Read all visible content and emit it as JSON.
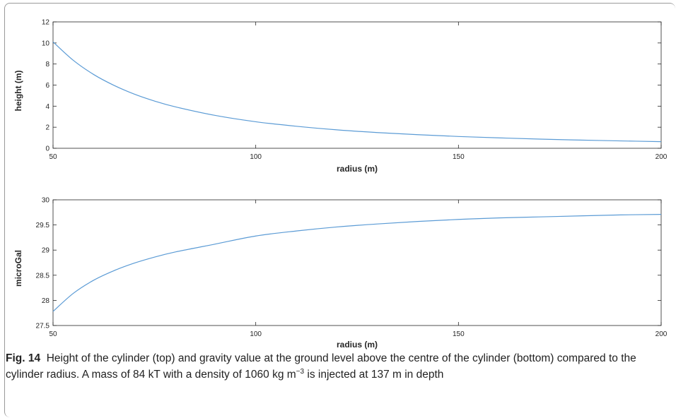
{
  "chart_data": [
    {
      "type": "line",
      "xlabel": "radius (m)",
      "ylabel": "height (m)",
      "xlim": [
        50,
        200
      ],
      "ylim": [
        0,
        12
      ],
      "xticks": [
        "50",
        "100",
        "150",
        "200"
      ],
      "yticks": [
        "0",
        "2",
        "4",
        "6",
        "8",
        "10",
        "12"
      ],
      "grid": false,
      "color": "#5b9bd5",
      "series": [
        {
          "x": [
            50,
            55,
            60,
            65,
            70,
            75,
            80,
            90,
            100,
            110,
            120,
            130,
            140,
            150,
            160,
            170,
            180,
            190,
            200
          ],
          "y": [
            10.1,
            8.35,
            7.01,
            5.98,
            5.15,
            4.49,
            3.95,
            3.12,
            2.52,
            2.09,
            1.75,
            1.49,
            1.29,
            1.12,
            0.99,
            0.87,
            0.78,
            0.7,
            0.63
          ]
        }
      ]
    },
    {
      "type": "line",
      "xlabel": "radius (m)",
      "ylabel": "microGal",
      "xlim": [
        50,
        200
      ],
      "ylim": [
        27.5,
        30
      ],
      "xticks": [
        "50",
        "100",
        "150",
        "200"
      ],
      "yticks": [
        "27.5",
        "28",
        "28.5",
        "29",
        "29.5",
        "30"
      ],
      "grid": false,
      "color": "#5b9bd5",
      "series": [
        {
          "x": [
            50,
            55,
            60,
            65,
            70,
            75,
            80,
            90,
            100,
            110,
            120,
            130,
            140,
            150,
            160,
            170,
            180,
            190,
            200
          ],
          "y": [
            27.78,
            28.14,
            28.4,
            28.59,
            28.74,
            28.86,
            28.96,
            29.12,
            29.28,
            29.38,
            29.46,
            29.52,
            29.57,
            29.61,
            29.64,
            29.66,
            29.68,
            29.7,
            29.71
          ]
        }
      ]
    }
  ],
  "caption": {
    "label": "Fig. 14",
    "text_before_sup": "Height of the cylinder (top) and gravity value at the ground level above the centre of the cylinder (bottom) compared to the cylinder radius. A mass of 84 kT with a density of 1060 kg m",
    "sup": "−3",
    "text_after_sup": " is injected at 137 m in depth"
  }
}
